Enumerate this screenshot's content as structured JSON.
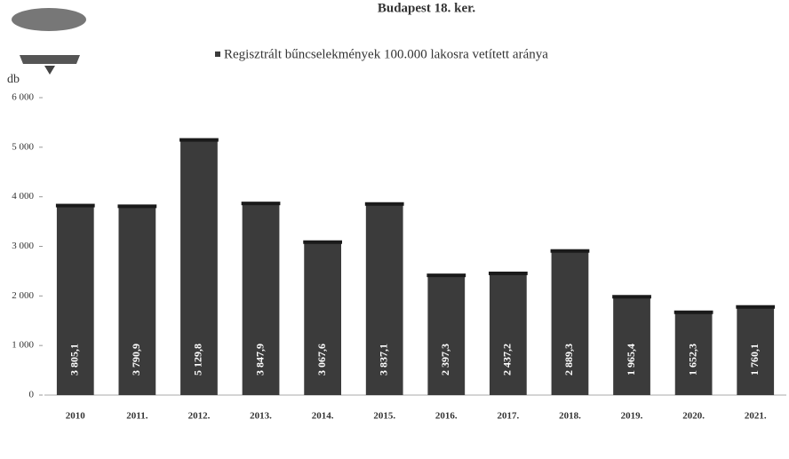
{
  "chart_data": {
    "type": "bar",
    "title": "Budapest 18. ker.",
    "legend": "Regisztrált bűncselekmények 100.000 lakosra vetített aránya",
    "y_label": "db",
    "categories": [
      "2010",
      "2011.",
      "2012.",
      "2013.",
      "2014.",
      "2015.",
      "2016.",
      "2017.",
      "2018.",
      "2019.",
      "2020.",
      "2021."
    ],
    "values": [
      3805.1,
      3790.9,
      5129.8,
      3847.9,
      3067.6,
      3837.1,
      2397.3,
      2437.2,
      2889.3,
      1965.4,
      1652.3,
      1760.1
    ],
    "value_labels": [
      "3 805,1",
      "3 790,9",
      "5 129,8",
      "3 847,9",
      "3 067,6",
      "3 837,1",
      "2 397,3",
      "2 437,2",
      "2 889,3",
      "1 965,4",
      "1 652,3",
      "1 760,1"
    ],
    "color": "#3b3b3b",
    "ylim": [
      0,
      6000
    ],
    "yticks": [
      0,
      {
        "value": 1000,
        "label": "1 000"
      },
      {
        "value": 2000,
        "label": "2 000"
      },
      {
        "value": 3000,
        "label": "3 000"
      },
      {
        "value": 4000,
        "label": "4 000"
      },
      {
        "value": 5000,
        "label": "5 000"
      },
      {
        "value": 6000,
        "label": "6 000"
      }
    ]
  }
}
